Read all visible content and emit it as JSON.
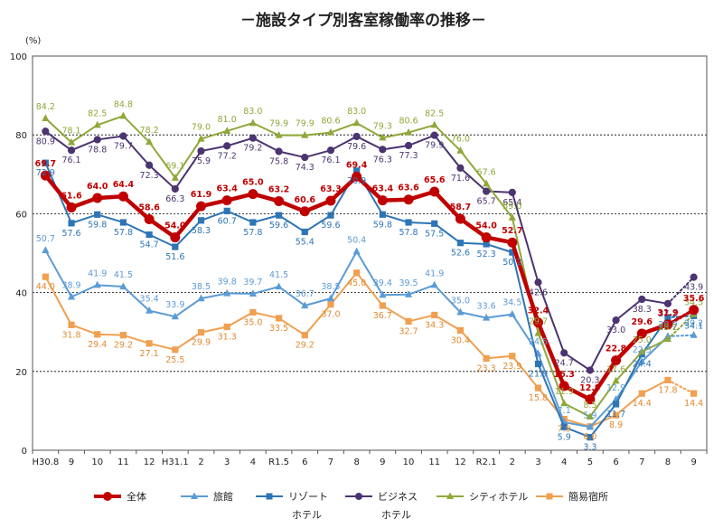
{
  "chart_data": {
    "type": "line",
    "title": "－施設タイプ別客室稼働率の推移－",
    "ylabel": "(%)",
    "xlabel": "",
    "ylim": [
      0,
      100
    ],
    "yticks": [
      "0",
      "20",
      "40",
      "60",
      "80",
      "100"
    ],
    "grid": true,
    "legend_position": "bottom",
    "categories": [
      "H30.8",
      "9",
      "10",
      "11",
      "12",
      "H31.1",
      "2",
      "3",
      "4",
      "R1.5",
      "6",
      "7",
      "8",
      "9",
      "10",
      "11",
      "12",
      "R2.1",
      "2",
      "3",
      "4",
      "5",
      "6",
      "7",
      "8",
      "9"
    ],
    "series": [
      {
        "key": "all",
        "name": "全体",
        "name_line2": "",
        "color": "#c00000",
        "marker": "circle",
        "values": [
          69.7,
          61.6,
          64.0,
          64.4,
          58.6,
          54.0,
          61.9,
          63.4,
          65.0,
          63.2,
          60.6,
          63.3,
          69.4,
          63.4,
          63.6,
          65.6,
          58.7,
          54.0,
          52.7,
          32.4,
          16.3,
          12.9,
          22.8,
          29.6,
          31.9,
          35.6
        ],
        "labels": [
          "69.7",
          "61.6",
          "64.0",
          "64.4",
          "58.6",
          "54.0",
          "61.9",
          "63.4",
          "65.0",
          "63.2",
          "60.6",
          "63.3",
          "69.4",
          "63.4",
          "63.6",
          "65.6",
          "58.7",
          "54.0",
          "52.7",
          "32.4",
          "16.3",
          "12.9",
          "22.8",
          "29.6",
          "31.9",
          "35.6"
        ]
      },
      {
        "key": "ryokan",
        "name": "旅館",
        "name_line2": "",
        "color": "#5b9bd5",
        "marker": "triangle",
        "values": [
          50.7,
          38.9,
          41.9,
          41.5,
          35.4,
          33.9,
          38.5,
          39.8,
          39.7,
          41.5,
          36.7,
          38.5,
          50.4,
          39.4,
          39.5,
          41.9,
          35.0,
          33.6,
          34.5,
          24.5,
          7.1,
          5.9,
          12.9,
          22.5,
          28.9,
          29.2
        ],
        "labels": [
          "50.7",
          "38.9",
          "41.9",
          "41.5",
          "35.4",
          "33.9",
          "38.5",
          "39.8",
          "39.7",
          "41.5",
          "36.7",
          "38.5",
          "50.4",
          "39.4",
          "39.5",
          "41.9",
          "35.0",
          "33.6",
          "34.5",
          "24.5",
          "7.1",
          "5.9",
          "12.9",
          "22.5",
          "28.9",
          "29.2"
        ]
      },
      {
        "key": "resort",
        "name": "リゾート",
        "name_line2": "ホテル",
        "color": "#2e75b6",
        "marker": "square",
        "values": [
          72.9,
          57.6,
          59.8,
          57.8,
          54.7,
          51.6,
          58.3,
          60.7,
          57.8,
          59.6,
          55.4,
          59.6,
          70.9,
          59.8,
          57.8,
          57.5,
          52.6,
          52.3,
          50.2,
          21.9,
          5.9,
          3.3,
          11.7,
          24.4,
          33.7,
          34.1
        ],
        "labels": [
          "72.9",
          "57.6",
          "59.8",
          "57.8",
          "54.7",
          "51.6",
          "58.3",
          "60.7",
          "57.8",
          "59.6",
          "55.4",
          "59.6",
          "70.9",
          "59.8",
          "57.8",
          "57.5",
          "52.6",
          "52.3",
          "50.2",
          "21.9",
          "5.9",
          "3.3",
          "11.7",
          "24.4",
          "33.7",
          "34.1"
        ]
      },
      {
        "key": "business",
        "name": "ビジネス",
        "name_line2": "ホテル",
        "color": "#4b3470",
        "marker": "circle",
        "values": [
          80.9,
          76.1,
          78.8,
          79.7,
          72.3,
          66.3,
          75.9,
          77.2,
          79.2,
          75.8,
          74.3,
          76.1,
          79.6,
          76.3,
          77.3,
          79.9,
          71.6,
          65.7,
          65.4,
          42.6,
          24.7,
          20.3,
          33.0,
          38.3,
          37.2,
          43.9
        ],
        "labels": [
          "80.9",
          "76.1",
          "78.8",
          "79.7",
          "72.3",
          "66.3",
          "75.9",
          "77.2",
          "79.2",
          "75.8",
          "74.3",
          "76.1",
          "79.6",
          "76.3",
          "77.3",
          "79.9",
          "71.6",
          "65.7",
          "65.4",
          "42.6",
          "24.7",
          "20.3",
          "33.0",
          "38.3",
          "37.2",
          "43.9"
        ]
      },
      {
        "key": "city",
        "name": "シティホテル",
        "name_line2": "",
        "color": "#8fa83a",
        "marker": "triangle",
        "values": [
          84.2,
          78.1,
          82.5,
          84.8,
          78.2,
          69.1,
          79.0,
          81.0,
          83.0,
          79.9,
          79.9,
          80.6,
          83.0,
          79.3,
          80.6,
          82.5,
          76.0,
          67.6,
          59.0,
          29.7,
          11.9,
          8.5,
          17.6,
          25.0,
          28.2,
          34.5
        ],
        "labels": [
          "84.2",
          "78.1",
          "82.5",
          "84.8",
          "78.2",
          "69.1",
          "79.0",
          "81.0",
          "83.0",
          "79.9",
          "79.9",
          "80.6",
          "83.0",
          "79.3",
          "80.6",
          "82.5",
          "76.0",
          "67.6",
          "59.0",
          "29.7",
          "11.9",
          "8.5",
          "17.6",
          "25.0",
          "28.2",
          "34.5"
        ]
      },
      {
        "key": "simple",
        "name": "簡易宿所",
        "name_line2": "",
        "color": "#f0a050",
        "marker": "square",
        "values": [
          44.0,
          31.8,
          29.4,
          29.2,
          27.1,
          25.5,
          29.9,
          31.3,
          35.0,
          33.5,
          29.2,
          37.0,
          45.0,
          36.7,
          32.7,
          34.3,
          30.4,
          23.3,
          23.9,
          15.8,
          7.9,
          6.0,
          8.9,
          14.4,
          17.8,
          14.4
        ],
        "labels": [
          "44.0",
          "31.8",
          "29.4",
          "29.2",
          "27.1",
          "25.5",
          "29.9",
          "31.3",
          "35.0",
          "33.5",
          "29.2",
          "37.0",
          "45.0",
          "36.7",
          "32.7",
          "34.3",
          "30.4",
          "23.3",
          "23.9",
          "15.8",
          "7.9",
          "6.0",
          "8.9",
          "14.4",
          "17.8",
          "14.4"
        ]
      }
    ]
  }
}
